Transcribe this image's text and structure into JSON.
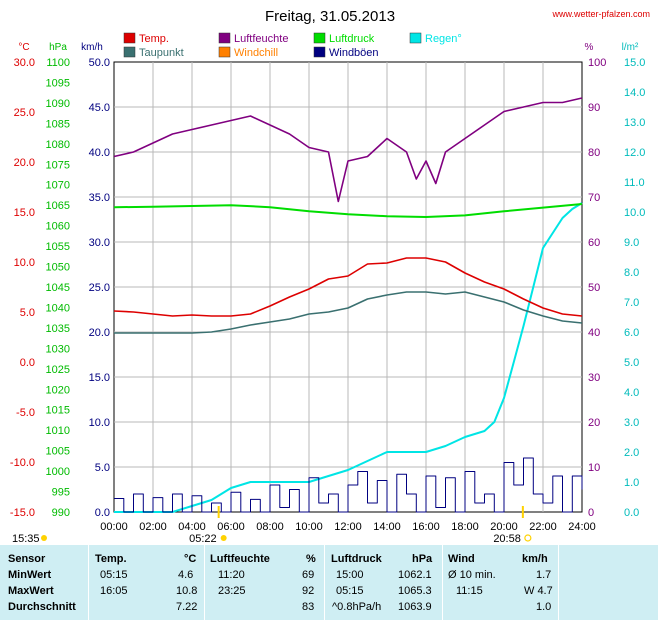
{
  "chart_data": {
    "type": "line",
    "title": "Freitag, 31.05.2013",
    "source": "www.wetter-pfalzen.com",
    "legend": [
      {
        "name": "Temp.",
        "color": "#dd0000"
      },
      {
        "name": "Taupunkt",
        "color": "#3a7070"
      },
      {
        "name": "Luftfeuchte",
        "color": "#800080"
      },
      {
        "name": "Windchill",
        "color": "#ff8000"
      },
      {
        "name": "Luftdruck",
        "color": "#00dd00"
      },
      {
        "name": "Windböen",
        "color": "#000080"
      },
      {
        "name": "Regen°",
        "color": "#00e5e5"
      }
    ],
    "axis_units": {
      "celsius": "°C",
      "hpa": "hPa",
      "kmh": "km/h",
      "percent": "%",
      "rain": "l/m²"
    },
    "axes": {
      "celsius": {
        "ticks": [
          "30.0",
          "25.0",
          "20.0",
          "15.0",
          "10.0",
          "5.0",
          "0.0",
          "-5.0",
          "-10.0",
          "-15.0"
        ],
        "color": "#dd0000"
      },
      "hpa": {
        "ticks": [
          "1100",
          "1095",
          "1090",
          "1085",
          "1080",
          "1075",
          "1070",
          "1065",
          "1060",
          "1055",
          "1050",
          "1045",
          "1040",
          "1035",
          "1030",
          "1025",
          "1020",
          "1015",
          "1010",
          "1005",
          "1000",
          "995",
          "990"
        ],
        "color": "#00bb00"
      },
      "kmh": {
        "ticks": [
          "50.0",
          "45.0",
          "40.0",
          "35.0",
          "30.0",
          "25.0",
          "20.0",
          "15.0",
          "10.0",
          "5.0",
          "0.0"
        ],
        "color": "#000080"
      },
      "percent": {
        "ticks": [
          "100",
          "90",
          "80",
          "70",
          "60",
          "50",
          "40",
          "30",
          "20",
          "10",
          "0"
        ],
        "color": "#800080"
      },
      "rain": {
        "ticks": [
          "15.0",
          "14.0",
          "13.0",
          "12.0",
          "11.0",
          "10.0",
          "9.0",
          "8.0",
          "7.0",
          "6.0",
          "5.0",
          "4.0",
          "3.0",
          "2.0",
          "1.0",
          "0.0"
        ],
        "color": "#00bbbb"
      }
    },
    "x_ticks": [
      "00:00",
      "02:00",
      "04:00",
      "06:00",
      "08:00",
      "10:00",
      "12:00",
      "14:00",
      "16:00",
      "18:00",
      "20:00",
      "22:00",
      "24:00"
    ],
    "xlim": [
      0,
      24
    ],
    "sun": {
      "sunrise": "05:22",
      "sunset": "20:58",
      "sunrise_hour": 5.367,
      "sunset_hour": 20.967,
      "timestamp": "15:35"
    },
    "series": [
      {
        "name": "Temp.",
        "axis": "celsius",
        "color": "#dd0000",
        "x": [
          0,
          1,
          2,
          3,
          4,
          5,
          6,
          7,
          8,
          9,
          10,
          11,
          12,
          13,
          14,
          15,
          16,
          17,
          18,
          19,
          20,
          21,
          22,
          23,
          24
        ],
        "y": [
          5.1,
          5.0,
          4.8,
          4.6,
          4.7,
          4.6,
          4.6,
          4.8,
          5.6,
          6.5,
          7.3,
          8.3,
          8.6,
          9.8,
          9.9,
          10.4,
          10.4,
          10.0,
          8.9,
          8.0,
          7.3,
          6.3,
          5.4,
          4.8,
          4.6
        ]
      },
      {
        "name": "Taupunkt",
        "axis": "celsius",
        "color": "#3a7070",
        "x": [
          0,
          1,
          2,
          3,
          4,
          5,
          6,
          7,
          8,
          9,
          10,
          11,
          12,
          13,
          14,
          15,
          16,
          17,
          18,
          19,
          20,
          21,
          22,
          23,
          24
        ],
        "y": [
          2.9,
          2.9,
          2.9,
          2.9,
          2.9,
          3.0,
          3.3,
          3.7,
          4.0,
          4.3,
          4.8,
          5.0,
          5.4,
          6.3,
          6.7,
          7.0,
          7.0,
          6.8,
          7.0,
          6.5,
          6.0,
          5.2,
          4.6,
          4.1,
          3.9
        ]
      },
      {
        "name": "Luftfeuchte",
        "axis": "percent",
        "color": "#800080",
        "x": [
          0,
          1,
          2,
          3,
          4,
          5,
          6,
          7,
          8,
          9,
          10,
          11,
          11.5,
          12,
          13,
          14,
          15,
          15.5,
          16,
          16.5,
          17,
          18,
          19,
          20,
          21,
          22,
          23,
          24
        ],
        "y": [
          79,
          80,
          82,
          84,
          85,
          86,
          87,
          88,
          86,
          84,
          81,
          80,
          69,
          78,
          79,
          83,
          80,
          74,
          78,
          73,
          80,
          83,
          86,
          89,
          90,
          91,
          91,
          92
        ]
      },
      {
        "name": "Luftdruck",
        "axis": "hpa",
        "color": "#00dd00",
        "x": [
          0,
          2,
          4,
          6,
          8,
          10,
          12,
          14,
          16,
          18,
          20,
          22,
          24
        ],
        "y": [
          1064.5,
          1064.6,
          1064.8,
          1065.0,
          1064.5,
          1063.5,
          1062.8,
          1062.3,
          1062.1,
          1062.5,
          1063.5,
          1064.4,
          1065.3
        ]
      },
      {
        "name": "Regen°",
        "axis": "rain",
        "color": "#00e5e5",
        "x": [
          0,
          3,
          4,
          5,
          6,
          7,
          8,
          9,
          10,
          11,
          12,
          13,
          14,
          15,
          16,
          17,
          18,
          19,
          19.5,
          20,
          20.5,
          21,
          21.5,
          22,
          23,
          23.5,
          24
        ],
        "y": [
          0.0,
          0.0,
          0.2,
          0.4,
          0.8,
          1.0,
          1.0,
          1.0,
          1.0,
          1.2,
          1.4,
          1.7,
          2.0,
          2.0,
          2.0,
          2.2,
          2.5,
          2.7,
          3.0,
          3.8,
          5.0,
          6.2,
          7.5,
          8.8,
          9.8,
          10.1,
          10.3
        ]
      },
      {
        "name": "Windböen",
        "axis": "kmh",
        "color": "#000080",
        "x": [
          0,
          0.5,
          1,
          1.5,
          2,
          2.5,
          3,
          3.5,
          4,
          4.5,
          5,
          5.5,
          6,
          6.5,
          7,
          7.5,
          8,
          8.5,
          9,
          9.5,
          10,
          10.5,
          11,
          11.5,
          12,
          12.5,
          13,
          13.5,
          14,
          14.5,
          15,
          15.5,
          16,
          16.5,
          17,
          17.5,
          18,
          18.5,
          19,
          19.5,
          20,
          20.5,
          21,
          21.5,
          22,
          22.5,
          23,
          23.5,
          24
        ],
        "y": [
          1.5,
          0,
          2.0,
          0,
          1.6,
          0,
          2.0,
          0,
          1.8,
          0,
          1.0,
          0,
          2.2,
          0,
          1.4,
          0,
          3.0,
          0.5,
          2.5,
          0,
          3.8,
          1.0,
          2.0,
          0,
          3.0,
          4.5,
          1.0,
          3.5,
          0,
          4.2,
          2.0,
          0,
          4.0,
          0.5,
          3.8,
          0,
          4.5,
          1.0,
          2.0,
          0,
          5.5,
          3.0,
          6.0,
          2.0,
          1.0,
          4.0,
          0,
          4.0,
          2.5
        ]
      }
    ]
  },
  "table": {
    "headers": {
      "sensor": "Sensor",
      "temp": "Temp.",
      "temp_unit": "°C",
      "humidity": "Luftfeuchte",
      "humidity_unit": "%",
      "pressure": "Luftdruck",
      "pressure_unit": "hPa",
      "wind": "Wind",
      "wind_unit": "km/h"
    },
    "rows": [
      {
        "label": "MinWert",
        "temp_time": "05:15",
        "temp_val": "4.6",
        "hum_time": "11:20",
        "hum_val": "69",
        "press_time": "15:00",
        "press_val": "1062.1",
        "wind_time": "Ø 10 min.",
        "wind_val": "1.7"
      },
      {
        "label": "MaxWert",
        "temp_time": "16:05",
        "temp_val": "10.8",
        "hum_time": "23:25",
        "hum_val": "92",
        "press_time": "05:15",
        "press_val": "1065.3",
        "wind_time": "11:15",
        "wind_val": "W 4.7"
      },
      {
        "label": "Durchschnitt",
        "temp_time": "",
        "temp_val": "7.22",
        "hum_time": "",
        "hum_val": "83",
        "press_time": "^0.8hPa/h",
        "press_val": "1063.9",
        "wind_time": "",
        "wind_val": "1.0"
      }
    ]
  }
}
